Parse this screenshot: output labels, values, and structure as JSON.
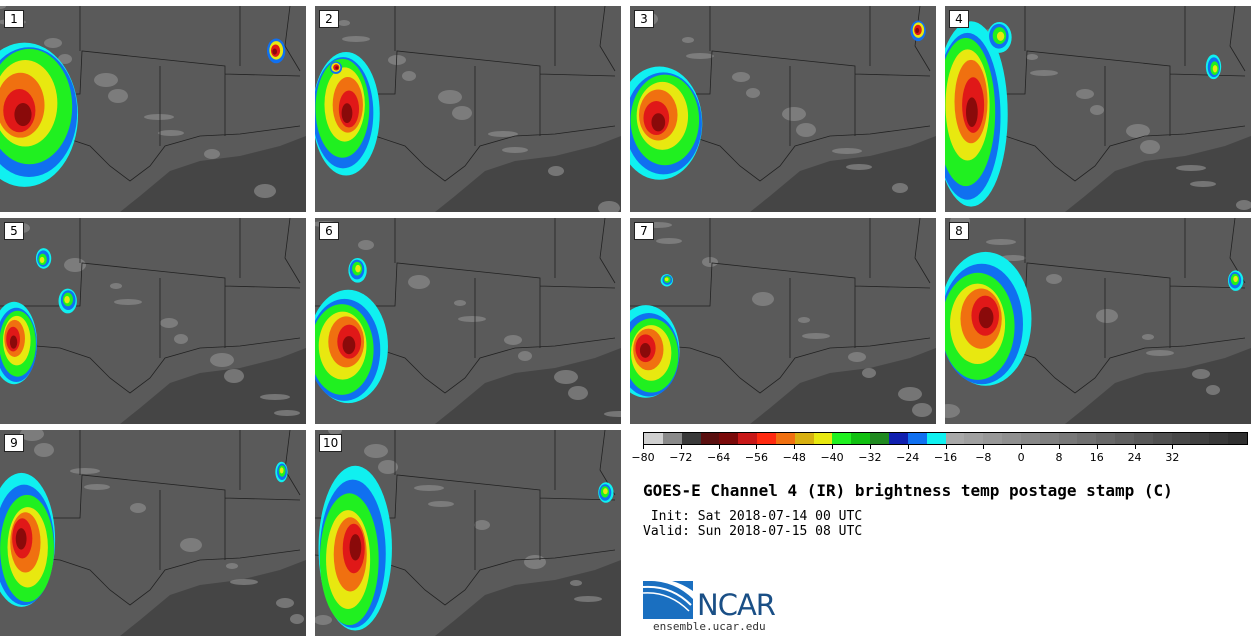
{
  "panels": [
    {
      "label": "1",
      "blobs": [
        [
          0.08,
          0.5,
          0.35,
          0.7,
          "storm"
        ],
        [
          0.9,
          0.22,
          0.06,
          0.12,
          "core"
        ]
      ]
    },
    {
      "label": "2",
      "blobs": [
        [
          0.1,
          0.5,
          0.22,
          0.6,
          "storm"
        ],
        [
          0.07,
          0.3,
          0.04,
          0.06,
          "core"
        ]
      ]
    },
    {
      "label": "3",
      "blobs": [
        [
          0.1,
          0.55,
          0.28,
          0.55,
          "storm"
        ],
        [
          0.94,
          0.12,
          0.05,
          0.1,
          "core"
        ]
      ]
    },
    {
      "label": "4",
      "blobs": [
        [
          0.08,
          0.5,
          0.24,
          0.9,
          "storm"
        ],
        [
          0.18,
          0.15,
          0.08,
          0.15,
          "cell"
        ],
        [
          0.88,
          0.3,
          0.05,
          0.12,
          "cell"
        ]
      ]
    },
    {
      "label": "5",
      "blobs": [
        [
          0.05,
          0.6,
          0.15,
          0.4,
          "storm"
        ],
        [
          0.22,
          0.4,
          0.06,
          0.12,
          "cell"
        ],
        [
          0.14,
          0.2,
          0.05,
          0.1,
          "cell"
        ]
      ]
    },
    {
      "label": "6",
      "blobs": [
        [
          0.1,
          0.62,
          0.26,
          0.55,
          "storm"
        ],
        [
          0.14,
          0.25,
          0.06,
          0.12,
          "cell"
        ]
      ]
    },
    {
      "label": "7",
      "blobs": [
        [
          0.06,
          0.65,
          0.22,
          0.45,
          "storm"
        ],
        [
          0.12,
          0.3,
          0.04,
          0.06,
          "cell"
        ]
      ]
    },
    {
      "label": "8",
      "blobs": [
        [
          0.12,
          0.5,
          0.3,
          0.65,
          "storm"
        ],
        [
          0.95,
          0.3,
          0.05,
          0.1,
          "cell"
        ]
      ]
    },
    {
      "label": "9",
      "blobs": [
        [
          0.08,
          0.55,
          0.22,
          0.65,
          "storm"
        ],
        [
          0.92,
          0.2,
          0.04,
          0.1,
          "cell"
        ]
      ]
    },
    {
      "label": "10",
      "blobs": [
        [
          0.12,
          0.6,
          0.24,
          0.8,
          "storm"
        ],
        [
          0.95,
          0.3,
          0.05,
          0.1,
          "cell"
        ]
      ]
    }
  ],
  "colorbar": {
    "colors": [
      "#d0d0d0",
      "#8a8a8a",
      "#3a3a3a",
      "#5a1010",
      "#7a0a0a",
      "#c81818",
      "#ff2a10",
      "#f07010",
      "#d8b010",
      "#e8e810",
      "#20f020",
      "#10c010",
      "#208a20",
      "#1020b0",
      "#1070f0",
      "#10f0f0",
      "#a8a8a8",
      "#a0a0a0",
      "#989898",
      "#909090",
      "#888888",
      "#808080",
      "#787878",
      "#707070",
      "#686868",
      "#606060",
      "#585858",
      "#505050",
      "#484848",
      "#404040",
      "#383838",
      "#303030"
    ],
    "ticks": [
      "−80",
      "−72",
      "−64",
      "−56",
      "−48",
      "−40",
      "−32",
      "−24",
      "−16",
      "−8",
      "0",
      "8",
      "16",
      "24",
      "32"
    ],
    "min": -80,
    "max": 40
  },
  "title": "GOES-E Channel 4 (IR) brightness temp postage stamp (C)",
  "init_line": " Init: Sat 2018-07-14 00 UTC",
  "valid_line": "Valid: Sun 2018-07-15 08 UTC",
  "logo_text": "NCAR",
  "site": "ensemble.ucar.edu"
}
